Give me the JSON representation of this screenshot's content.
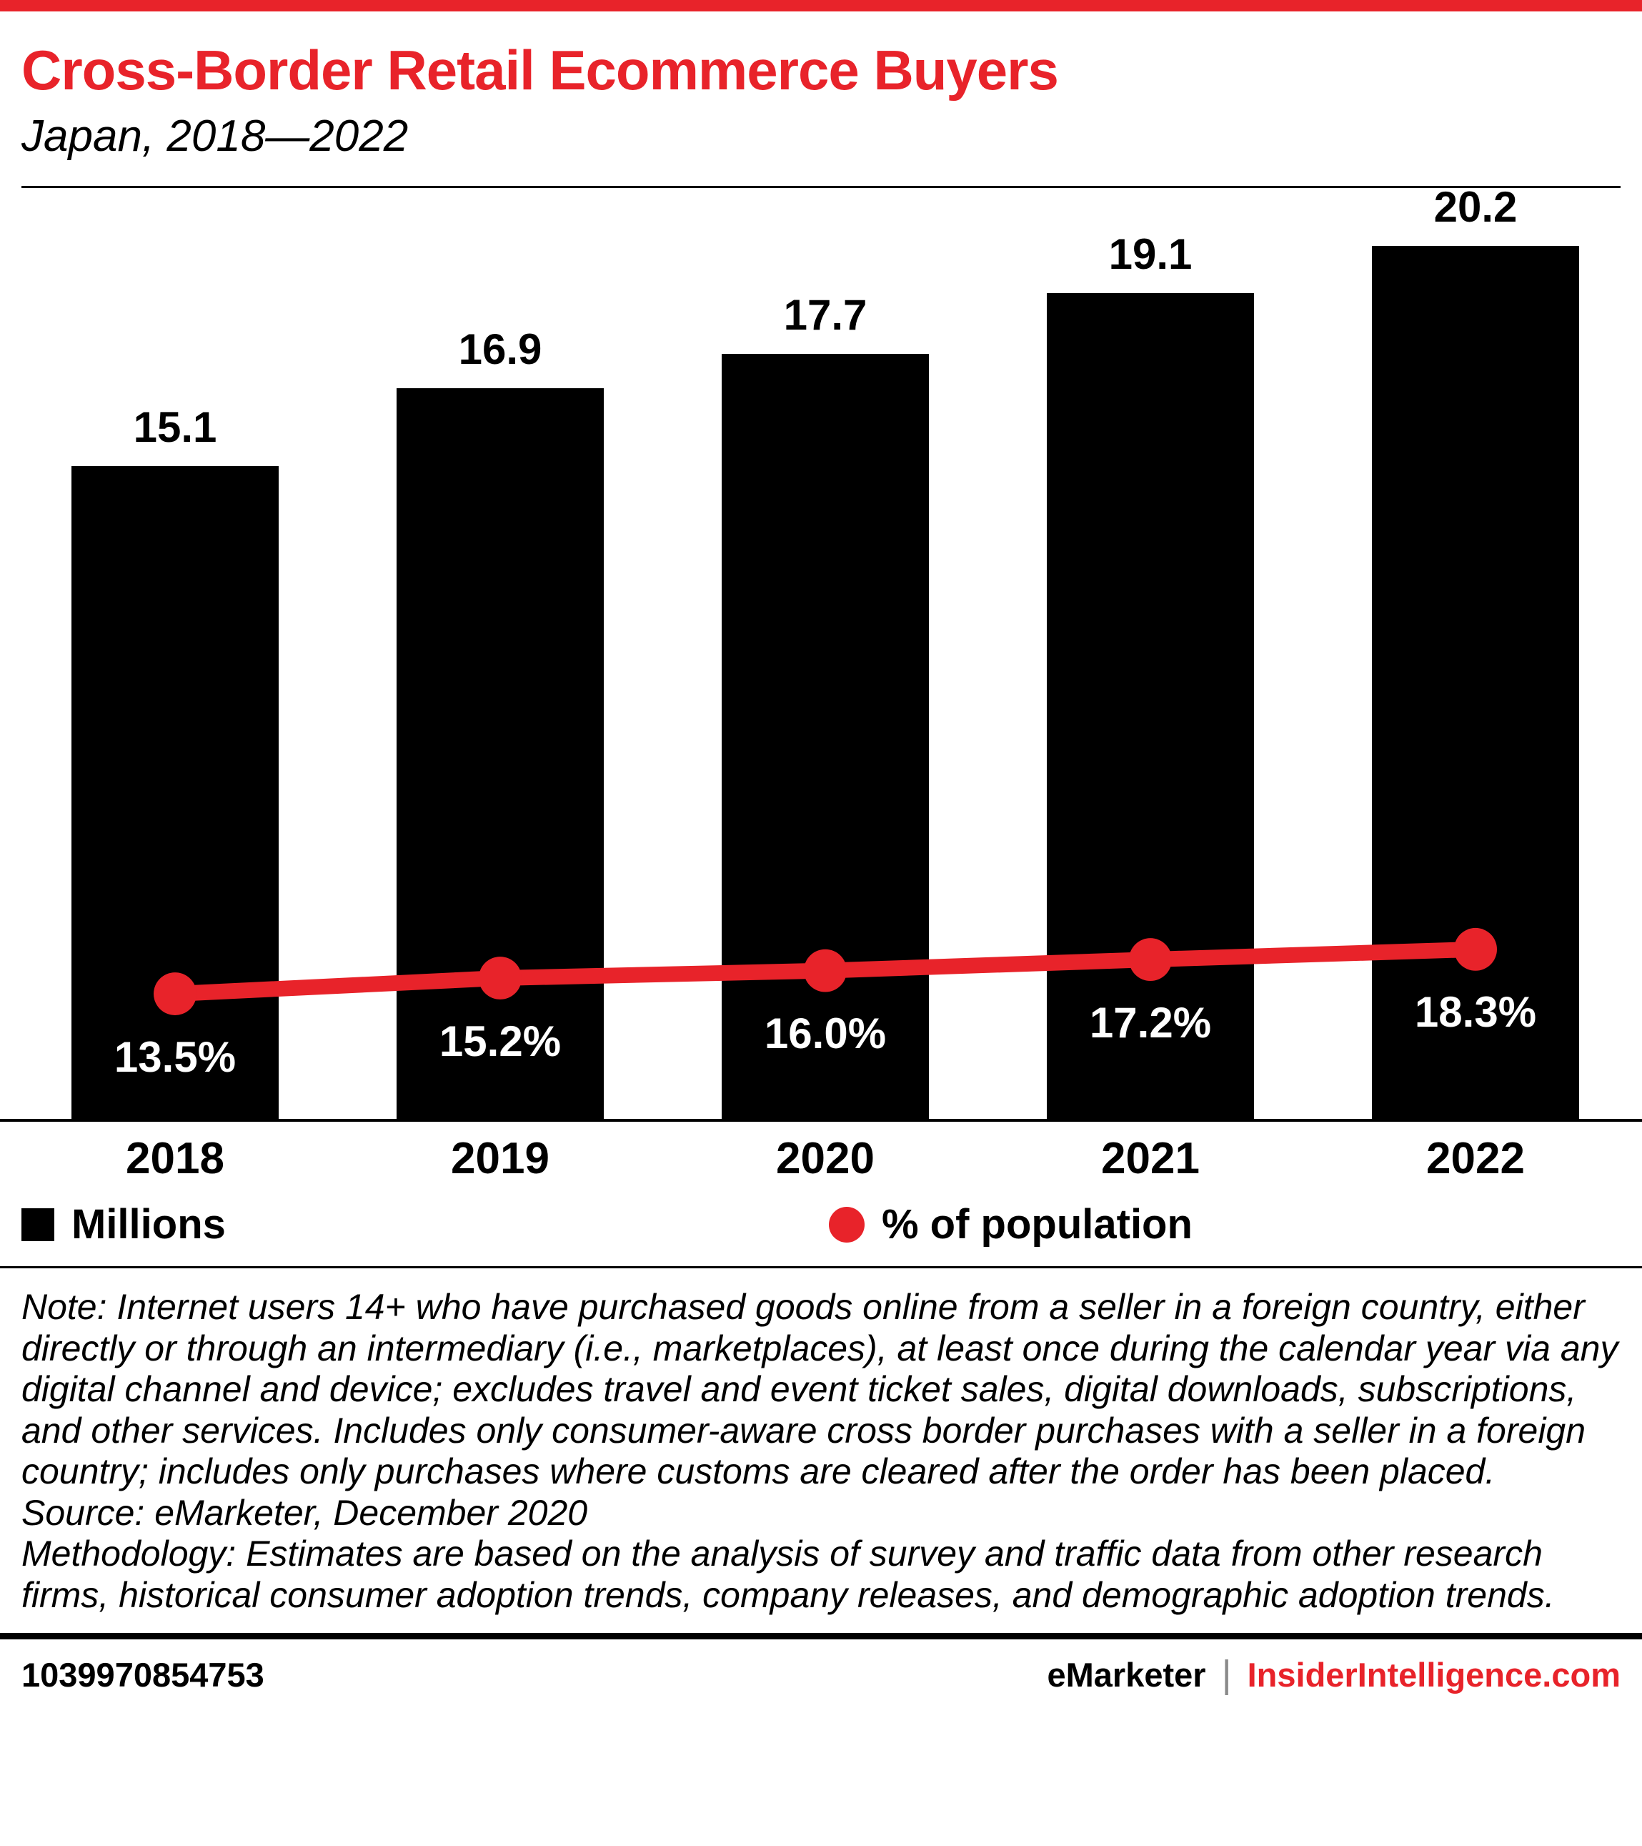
{
  "header": {
    "title": "Cross-Border Retail Ecommerce Buyers",
    "subtitle": "Japan, 2018—2022"
  },
  "chart_data": {
    "type": "bar",
    "categories": [
      "2018",
      "2019",
      "2020",
      "2021",
      "2022"
    ],
    "series": [
      {
        "name": "Millions",
        "type": "bar",
        "color": "#000000",
        "values": [
          15.1,
          16.9,
          17.7,
          19.1,
          20.2
        ],
        "value_labels": [
          "15.1",
          "16.9",
          "17.7",
          "19.1",
          "20.2"
        ]
      },
      {
        "name": "% of population",
        "type": "line",
        "color": "#e8232a",
        "values": [
          13.5,
          15.2,
          16.0,
          17.2,
          18.3
        ],
        "value_labels": [
          "13.5%",
          "15.2%",
          "16.0%",
          "17.2%",
          "18.3%"
        ]
      }
    ],
    "title": "Cross-Border Retail Ecommerce Buyers",
    "subtitle": "Japan, 2018—2022",
    "xlabel": "",
    "ylabel": "",
    "bar_ylim": [
      0,
      21.5
    ],
    "line_ylim": [
      0,
      100
    ],
    "grid": false,
    "legend_position": "bottom"
  },
  "legend": {
    "items": [
      {
        "label": "Millions",
        "swatch": "black-square"
      },
      {
        "label": "% of population",
        "swatch": "red-dot"
      }
    ]
  },
  "notes": {
    "note": "Note: Internet users 14+ who have purchased goods online from a seller in a foreign country, either directly or through an intermediary (i.e., marketplaces), at least once during the calendar year via any digital channel and device; excludes travel and event ticket sales, digital downloads, subscriptions, and other services. Includes only consumer-aware cross border purchases with a seller in a foreign country; includes only purchases where customs are cleared after the order has been placed.",
    "source": "Source: eMarketer, December 2020",
    "methodology": "Methodology: Estimates are based on the analysis of survey and traffic data from other research firms, historical consumer adoption trends, company releases, and demographic adoption trends."
  },
  "footer": {
    "id": "1039970854753",
    "brand": "eMarketer",
    "divider": "|",
    "site": "InsiderIntelligence.com"
  },
  "colors": {
    "accent_red": "#e8232a",
    "bar_black": "#000000"
  }
}
